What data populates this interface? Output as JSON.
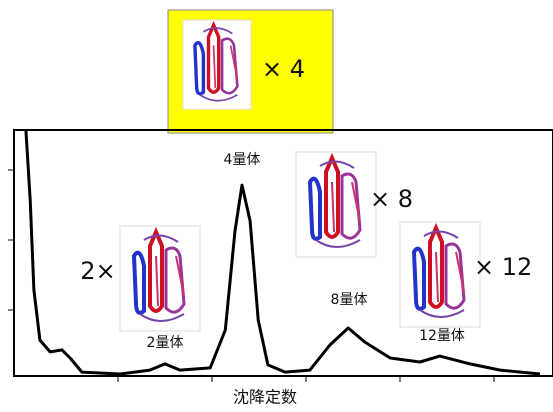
{
  "chart_data": {
    "type": "line",
    "xlabel": "沈降定数",
    "annotations": [
      "× 4",
      "4量体",
      "× 8",
      "2×",
      "2量体",
      "8量体",
      "× 12",
      "12量体"
    ],
    "x": [
      2.2,
      3.0,
      3.7,
      4.8,
      6.7,
      8.9,
      10.4,
      12.6,
      19.7,
      25.2,
      28.0,
      30.8,
      36.4,
      39.2,
      41.0,
      42.3,
      43.8,
      45.3,
      47.1,
      50.3,
      54.9,
      58.6,
      62.0,
      65.1,
      69.8,
      75.3,
      79.0,
      84.6,
      90.2,
      97.6
    ],
    "values": [
      100,
      71.5,
      35,
      14.6,
      9.8,
      10.6,
      7.3,
      1.6,
      0.8,
      2.4,
      4.9,
      2.4,
      3.3,
      18.7,
      59,
      77.6,
      63,
      22.8,
      4.5,
      1.6,
      2.4,
      12.6,
      19.5,
      13.8,
      7.3,
      5.7,
      8.1,
      4.9,
      2.4,
      0.8
    ],
    "color": "#000000",
    "xlim": [
      0,
      100
    ],
    "ylim": [
      0,
      100
    ]
  }
}
